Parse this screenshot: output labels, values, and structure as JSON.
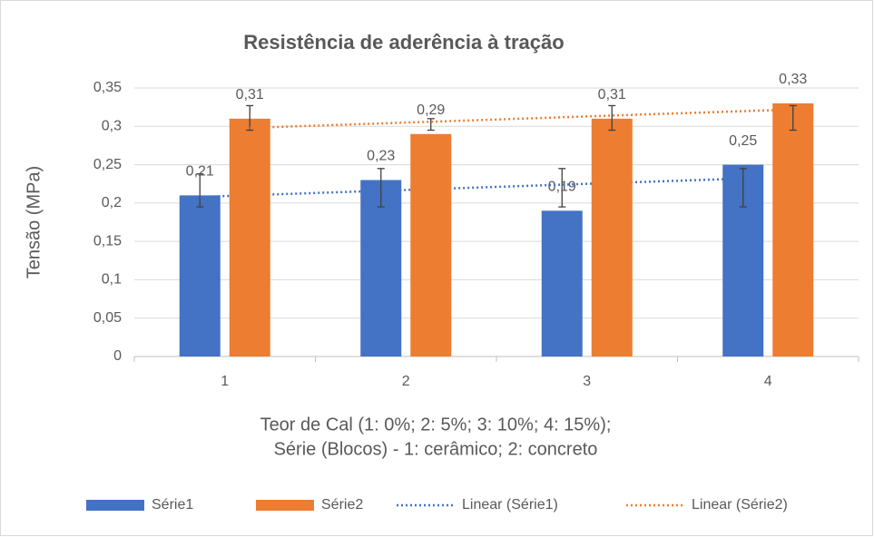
{
  "chart_data": {
    "type": "bar",
    "title": "Resistência de aderência à tração",
    "y_label": "Tensão (MPa)",
    "x_label": [
      "Teor de Cal (1: 0%; 2: 5%; 3: 10%; 4: 15%);",
      "Série (Blocos) - 1: cerâmico; 2: concreto"
    ],
    "categories": [
      "1",
      "2",
      "3",
      "4"
    ],
    "series": [
      {
        "name": "Série1",
        "color": "#4472c4",
        "values": [
          0.21,
          0.23,
          0.19,
          0.25
        ],
        "value_labels": [
          "0,21",
          "0,23",
          "0,19",
          "0,25"
        ],
        "error_bars": [
          [
            0.195,
            0.238
          ],
          [
            0.195,
            0.245
          ],
          [
            0.195,
            0.245
          ],
          [
            0.195,
            0.245
          ]
        ],
        "trendline": {
          "name": "Linear (Série1)",
          "type": "linear"
        }
      },
      {
        "name": "Série2",
        "color": "#ed7d31",
        "values": [
          0.31,
          0.29,
          0.31,
          0.33
        ],
        "value_labels": [
          "0,31",
          "0,29",
          "0,31",
          "0,33"
        ],
        "error_bars": [
          [
            0.295,
            0.327
          ],
          [
            0.295,
            0.31
          ],
          [
            0.295,
            0.327
          ],
          [
            0.295,
            0.327
          ]
        ],
        "trendline": {
          "name": "Linear (Série2)",
          "type": "linear"
        }
      }
    ],
    "ylim": [
      0,
      0.35
    ],
    "yticks": [
      0,
      {
        "value": 0.05,
        "label": "0,05"
      },
      {
        "value": 0.1,
        "label": "0,1"
      },
      {
        "value": 0.15,
        "label": "0,15"
      },
      {
        "value": 0.2,
        "label": "0,2"
      },
      {
        "value": 0.25,
        "label": "0,25"
      },
      {
        "value": 0.3,
        "label": "0,3"
      },
      {
        "value": 0.35,
        "label": "0,35"
      }
    ],
    "grid": true,
    "legend": "bottom"
  }
}
